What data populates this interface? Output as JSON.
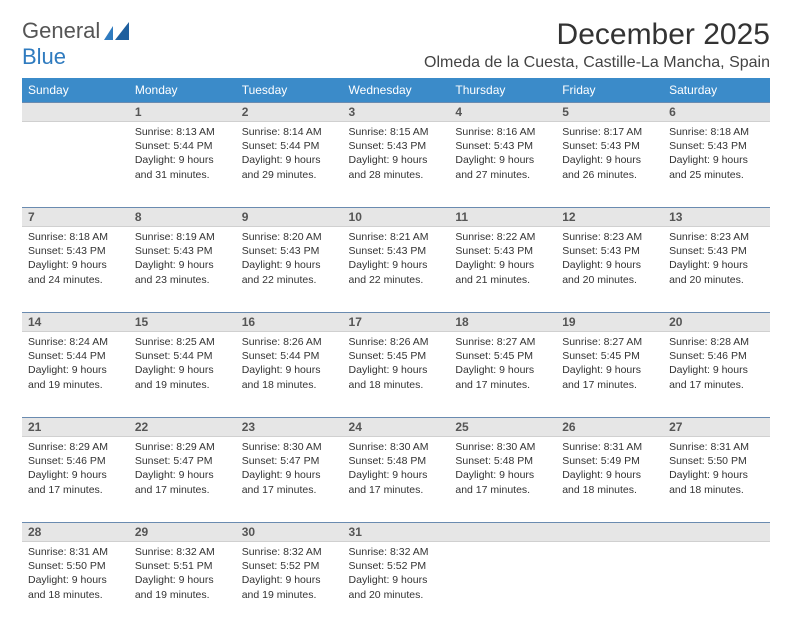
{
  "logo": {
    "text1": "General",
    "text2": "Blue"
  },
  "title": "December 2025",
  "location": "Olmeda de la Cuesta, Castille-La Mancha, Spain",
  "colors": {
    "header_bg": "#3b8bc9",
    "daynum_bg": "#e6e6e6",
    "daynum_border_top": "#6a8bb0",
    "text": "#333333"
  },
  "days_of_week": [
    "Sunday",
    "Monday",
    "Tuesday",
    "Wednesday",
    "Thursday",
    "Friday",
    "Saturday"
  ],
  "weeks": [
    [
      {
        "n": "",
        "sr": "",
        "ss": "",
        "dl": ""
      },
      {
        "n": "1",
        "sr": "Sunrise: 8:13 AM",
        "ss": "Sunset: 5:44 PM",
        "dl": "Daylight: 9 hours and 31 minutes."
      },
      {
        "n": "2",
        "sr": "Sunrise: 8:14 AM",
        "ss": "Sunset: 5:44 PM",
        "dl": "Daylight: 9 hours and 29 minutes."
      },
      {
        "n": "3",
        "sr": "Sunrise: 8:15 AM",
        "ss": "Sunset: 5:43 PM",
        "dl": "Daylight: 9 hours and 28 minutes."
      },
      {
        "n": "4",
        "sr": "Sunrise: 8:16 AM",
        "ss": "Sunset: 5:43 PM",
        "dl": "Daylight: 9 hours and 27 minutes."
      },
      {
        "n": "5",
        "sr": "Sunrise: 8:17 AM",
        "ss": "Sunset: 5:43 PM",
        "dl": "Daylight: 9 hours and 26 minutes."
      },
      {
        "n": "6",
        "sr": "Sunrise: 8:18 AM",
        "ss": "Sunset: 5:43 PM",
        "dl": "Daylight: 9 hours and 25 minutes."
      }
    ],
    [
      {
        "n": "7",
        "sr": "Sunrise: 8:18 AM",
        "ss": "Sunset: 5:43 PM",
        "dl": "Daylight: 9 hours and 24 minutes."
      },
      {
        "n": "8",
        "sr": "Sunrise: 8:19 AM",
        "ss": "Sunset: 5:43 PM",
        "dl": "Daylight: 9 hours and 23 minutes."
      },
      {
        "n": "9",
        "sr": "Sunrise: 8:20 AM",
        "ss": "Sunset: 5:43 PM",
        "dl": "Daylight: 9 hours and 22 minutes."
      },
      {
        "n": "10",
        "sr": "Sunrise: 8:21 AM",
        "ss": "Sunset: 5:43 PM",
        "dl": "Daylight: 9 hours and 22 minutes."
      },
      {
        "n": "11",
        "sr": "Sunrise: 8:22 AM",
        "ss": "Sunset: 5:43 PM",
        "dl": "Daylight: 9 hours and 21 minutes."
      },
      {
        "n": "12",
        "sr": "Sunrise: 8:23 AM",
        "ss": "Sunset: 5:43 PM",
        "dl": "Daylight: 9 hours and 20 minutes."
      },
      {
        "n": "13",
        "sr": "Sunrise: 8:23 AM",
        "ss": "Sunset: 5:43 PM",
        "dl": "Daylight: 9 hours and 20 minutes."
      }
    ],
    [
      {
        "n": "14",
        "sr": "Sunrise: 8:24 AM",
        "ss": "Sunset: 5:44 PM",
        "dl": "Daylight: 9 hours and 19 minutes."
      },
      {
        "n": "15",
        "sr": "Sunrise: 8:25 AM",
        "ss": "Sunset: 5:44 PM",
        "dl": "Daylight: 9 hours and 19 minutes."
      },
      {
        "n": "16",
        "sr": "Sunrise: 8:26 AM",
        "ss": "Sunset: 5:44 PM",
        "dl": "Daylight: 9 hours and 18 minutes."
      },
      {
        "n": "17",
        "sr": "Sunrise: 8:26 AM",
        "ss": "Sunset: 5:45 PM",
        "dl": "Daylight: 9 hours and 18 minutes."
      },
      {
        "n": "18",
        "sr": "Sunrise: 8:27 AM",
        "ss": "Sunset: 5:45 PM",
        "dl": "Daylight: 9 hours and 17 minutes."
      },
      {
        "n": "19",
        "sr": "Sunrise: 8:27 AM",
        "ss": "Sunset: 5:45 PM",
        "dl": "Daylight: 9 hours and 17 minutes."
      },
      {
        "n": "20",
        "sr": "Sunrise: 8:28 AM",
        "ss": "Sunset: 5:46 PM",
        "dl": "Daylight: 9 hours and 17 minutes."
      }
    ],
    [
      {
        "n": "21",
        "sr": "Sunrise: 8:29 AM",
        "ss": "Sunset: 5:46 PM",
        "dl": "Daylight: 9 hours and 17 minutes."
      },
      {
        "n": "22",
        "sr": "Sunrise: 8:29 AM",
        "ss": "Sunset: 5:47 PM",
        "dl": "Daylight: 9 hours and 17 minutes."
      },
      {
        "n": "23",
        "sr": "Sunrise: 8:30 AM",
        "ss": "Sunset: 5:47 PM",
        "dl": "Daylight: 9 hours and 17 minutes."
      },
      {
        "n": "24",
        "sr": "Sunrise: 8:30 AM",
        "ss": "Sunset: 5:48 PM",
        "dl": "Daylight: 9 hours and 17 minutes."
      },
      {
        "n": "25",
        "sr": "Sunrise: 8:30 AM",
        "ss": "Sunset: 5:48 PM",
        "dl": "Daylight: 9 hours and 17 minutes."
      },
      {
        "n": "26",
        "sr": "Sunrise: 8:31 AM",
        "ss": "Sunset: 5:49 PM",
        "dl": "Daylight: 9 hours and 18 minutes."
      },
      {
        "n": "27",
        "sr": "Sunrise: 8:31 AM",
        "ss": "Sunset: 5:50 PM",
        "dl": "Daylight: 9 hours and 18 minutes."
      }
    ],
    [
      {
        "n": "28",
        "sr": "Sunrise: 8:31 AM",
        "ss": "Sunset: 5:50 PM",
        "dl": "Daylight: 9 hours and 18 minutes."
      },
      {
        "n": "29",
        "sr": "Sunrise: 8:32 AM",
        "ss": "Sunset: 5:51 PM",
        "dl": "Daylight: 9 hours and 19 minutes."
      },
      {
        "n": "30",
        "sr": "Sunrise: 8:32 AM",
        "ss": "Sunset: 5:52 PM",
        "dl": "Daylight: 9 hours and 19 minutes."
      },
      {
        "n": "31",
        "sr": "Sunrise: 8:32 AM",
        "ss": "Sunset: 5:52 PM",
        "dl": "Daylight: 9 hours and 20 minutes."
      },
      {
        "n": "",
        "sr": "",
        "ss": "",
        "dl": ""
      },
      {
        "n": "",
        "sr": "",
        "ss": "",
        "dl": ""
      },
      {
        "n": "",
        "sr": "",
        "ss": "",
        "dl": ""
      }
    ]
  ]
}
